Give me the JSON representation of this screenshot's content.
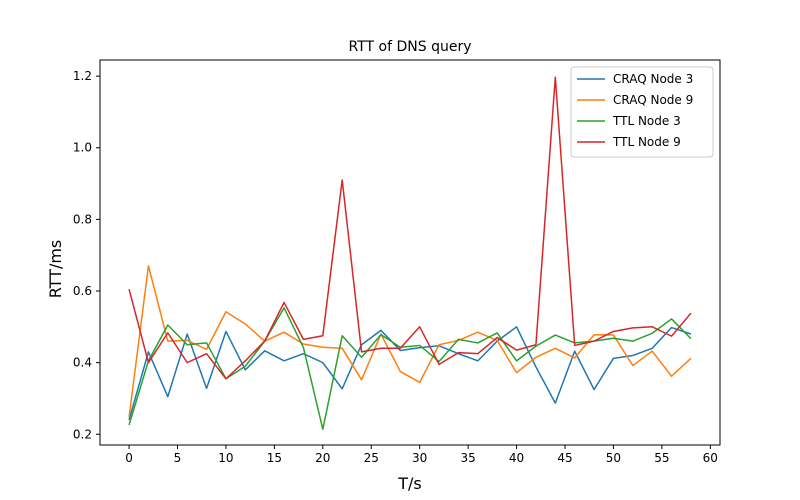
{
  "chart_data": {
    "type": "line",
    "title": "RTT of DNS query",
    "xlabel": "T/s",
    "ylabel": "RTT/ms",
    "xlim": [
      -3,
      61
    ],
    "ylim": [
      0.17,
      1.245
    ],
    "x_ticks": [
      0,
      5,
      10,
      15,
      20,
      25,
      30,
      35,
      40,
      45,
      50,
      55,
      60
    ],
    "y_ticks": [
      0.2,
      0.4,
      0.6,
      0.8,
      1.0,
      1.2
    ],
    "y_tick_labels": [
      "0.2",
      "0.4",
      "0.6",
      "0.8",
      "1.0",
      "1.2"
    ],
    "grid": false,
    "legend_position": "top-right",
    "x": [
      0,
      2,
      4,
      6,
      8,
      10,
      12,
      14,
      16,
      18,
      20,
      22,
      24,
      26,
      28,
      30,
      32,
      34,
      36,
      38,
      40,
      42,
      44,
      46,
      48,
      50,
      52,
      54,
      56,
      58
    ],
    "series": [
      {
        "name": "CRAQ Node 3",
        "color": "#1f77b4",
        "values": [
          0.24,
          0.43,
          0.305,
          0.48,
          0.328,
          0.487,
          0.38,
          0.433,
          0.405,
          0.425,
          0.4,
          0.327,
          0.45,
          0.49,
          0.434,
          0.442,
          0.447,
          0.425,
          0.405,
          0.46,
          0.5,
          0.388,
          0.287,
          0.432,
          0.325,
          0.412,
          0.42,
          0.44,
          0.498,
          0.48
        ]
      },
      {
        "name": "CRAQ Node 9",
        "color": "#ff7f0e",
        "values": [
          0.248,
          0.67,
          0.46,
          0.462,
          0.437,
          0.542,
          0.508,
          0.46,
          0.485,
          0.452,
          0.443,
          0.44,
          0.352,
          0.48,
          0.375,
          0.345,
          0.45,
          0.462,
          0.485,
          0.462,
          0.372,
          0.415,
          0.44,
          0.413,
          0.478,
          0.477,
          0.392,
          0.432,
          0.362,
          0.412
        ]
      },
      {
        "name": "TTL Node 3",
        "color": "#2ca02c",
        "values": [
          0.226,
          0.405,
          0.505,
          0.45,
          0.455,
          0.355,
          0.39,
          0.46,
          0.553,
          0.442,
          0.214,
          0.475,
          0.415,
          0.478,
          0.443,
          0.448,
          0.403,
          0.465,
          0.455,
          0.483,
          0.405,
          0.446,
          0.477,
          0.455,
          0.46,
          0.468,
          0.46,
          0.482,
          0.522,
          0.467
        ]
      },
      {
        "name": "TTL Node 9",
        "color": "#d62728",
        "values": [
          0.605,
          0.4,
          0.483,
          0.4,
          0.425,
          0.355,
          0.405,
          0.46,
          0.568,
          0.465,
          0.475,
          0.91,
          0.43,
          0.44,
          0.44,
          0.5,
          0.395,
          0.428,
          0.425,
          0.47,
          0.435,
          0.45,
          1.197,
          0.448,
          0.46,
          0.487,
          0.497,
          0.5,
          0.474,
          0.538
        ]
      }
    ]
  }
}
